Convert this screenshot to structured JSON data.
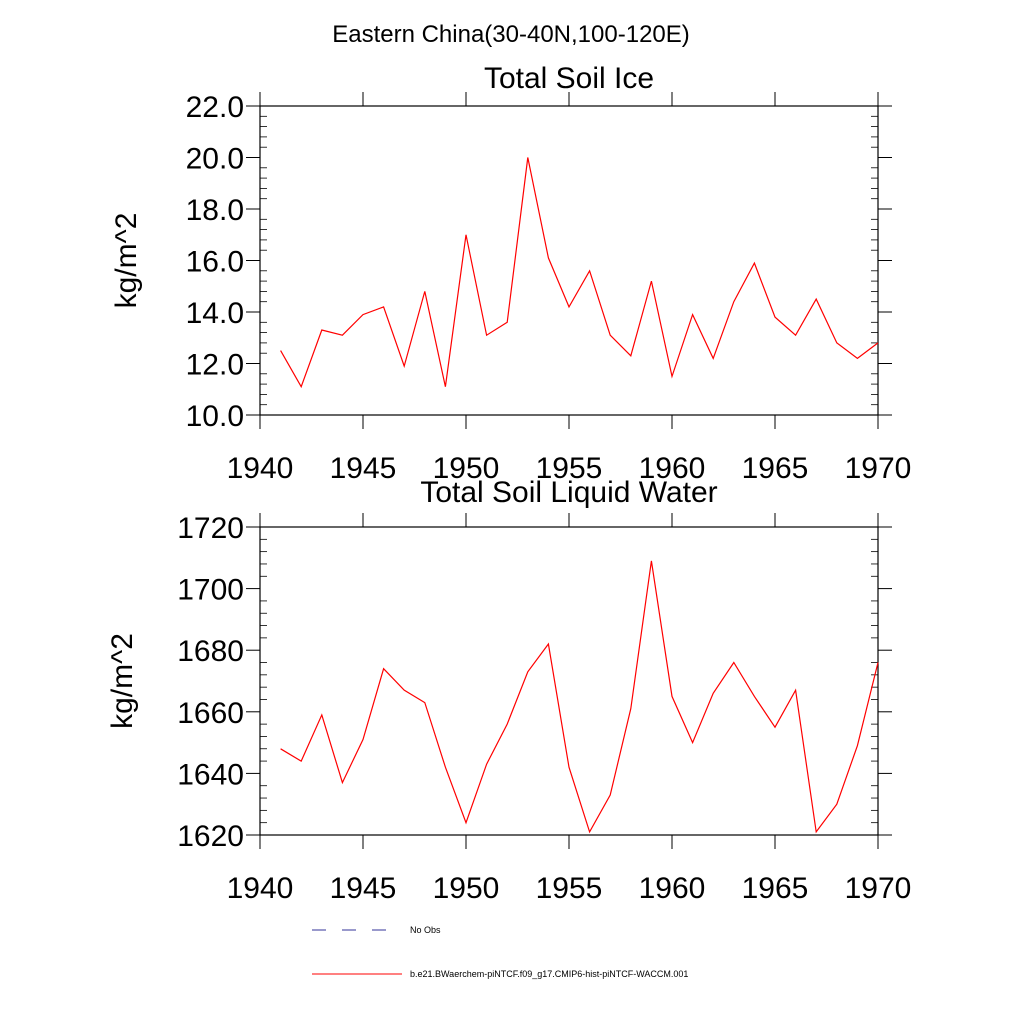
{
  "figure": {
    "title": "Eastern China(30-40N,100-120E)"
  },
  "colors": {
    "model_line": "#ff0000",
    "obs_line": "#333399",
    "axes": "#000000"
  },
  "legend": {
    "obs_label": "No Obs",
    "model_label": "b.e21.BWaerchem-piNTCF.f09_g17.CMIP6-hist-piNTCF-WACCM.001"
  },
  "chart_data": [
    {
      "type": "line",
      "title": "Total Soil Ice",
      "ylabel": "kg/m^2",
      "xlabel": "",
      "xlim": [
        1940,
        1970
      ],
      "ylim": [
        10,
        22
      ],
      "xticks": [
        1940,
        1945,
        1950,
        1955,
        1960,
        1965,
        1970
      ],
      "xtick_labels": [
        "1940",
        "1945",
        "1950",
        "1955",
        "1960",
        "1965",
        "1970"
      ],
      "yticks": [
        10,
        12,
        14,
        16,
        18,
        20,
        22
      ],
      "ytick_labels": [
        "10.0",
        "12.0",
        "14.0",
        "16.0",
        "18.0",
        "20.0",
        "22.0"
      ],
      "series": [
        {
          "name": "b.e21.BWaerchem-piNTCF.f09_g17.CMIP6-hist-piNTCF-WACCM.001",
          "x": [
            1941,
            1942,
            1943,
            1944,
            1945,
            1946,
            1947,
            1948,
            1949,
            1950,
            1951,
            1952,
            1953,
            1954,
            1955,
            1956,
            1957,
            1958,
            1959,
            1960,
            1961,
            1962,
            1963,
            1964,
            1965,
            1966,
            1967,
            1968,
            1969,
            1970
          ],
          "y": [
            12.5,
            11.1,
            13.3,
            13.1,
            13.9,
            14.2,
            11.9,
            14.8,
            11.1,
            17.0,
            13.1,
            13.6,
            20.0,
            16.1,
            14.2,
            15.6,
            13.1,
            12.3,
            15.2,
            11.5,
            13.9,
            12.2,
            14.4,
            15.9,
            13.8,
            13.1,
            14.5,
            12.8,
            12.2,
            12.8
          ]
        }
      ]
    },
    {
      "type": "line",
      "title": "Total Soil Liquid Water",
      "ylabel": "kg/m^2",
      "xlabel": "",
      "xlim": [
        1940,
        1970
      ],
      "ylim": [
        1620,
        1720
      ],
      "xticks": [
        1940,
        1945,
        1950,
        1955,
        1960,
        1965,
        1970
      ],
      "xtick_labels": [
        "1940",
        "1945",
        "1950",
        "1955",
        "1960",
        "1965",
        "1970"
      ],
      "yticks": [
        1620,
        1640,
        1660,
        1680,
        1700,
        1720
      ],
      "ytick_labels": [
        "1620",
        "1640",
        "1660",
        "1680",
        "1700",
        "1720"
      ],
      "series": [
        {
          "name": "b.e21.BWaerchem-piNTCF.f09_g17.CMIP6-hist-piNTCF-WACCM.001",
          "x": [
            1941,
            1942,
            1943,
            1944,
            1945,
            1946,
            1947,
            1948,
            1949,
            1950,
            1951,
            1952,
            1953,
            1954,
            1955,
            1956,
            1957,
            1958,
            1959,
            1960,
            1961,
            1962,
            1963,
            1964,
            1965,
            1966,
            1967,
            1968,
            1969,
            1970
          ],
          "y": [
            1648,
            1644,
            1659,
            1637,
            1651,
            1674,
            1667,
            1663,
            1642,
            1624,
            1643,
            1656,
            1673,
            1682,
            1642,
            1621,
            1633,
            1661,
            1709,
            1665,
            1650,
            1666,
            1676,
            1665,
            1655,
            1667,
            1621,
            1630,
            1649,
            1676
          ]
        }
      ]
    }
  ]
}
